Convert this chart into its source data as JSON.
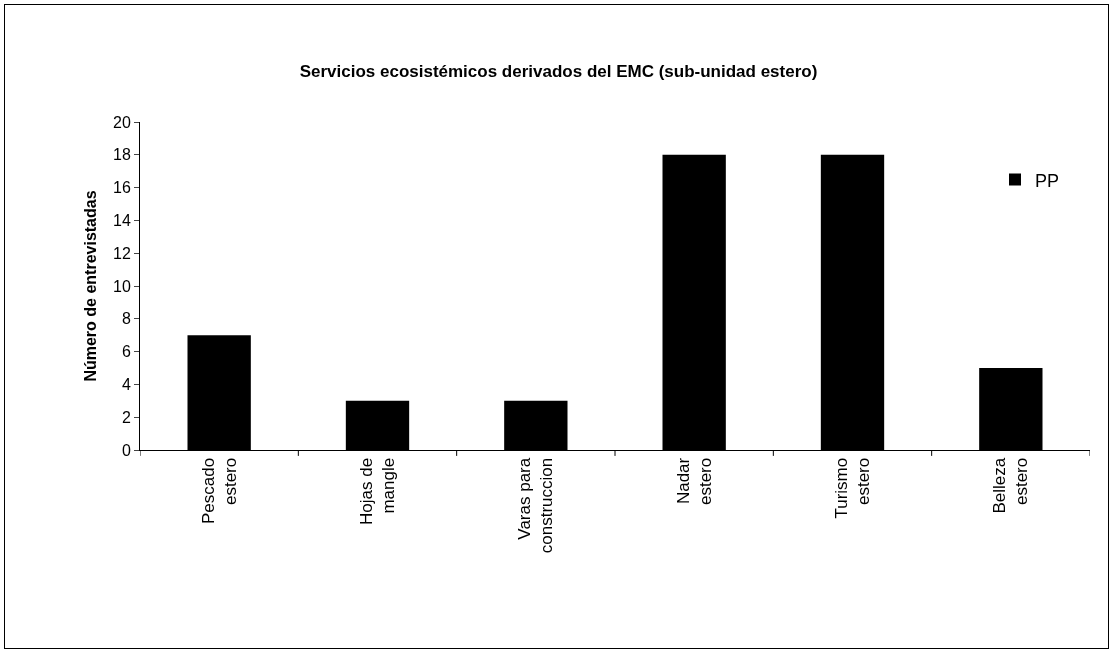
{
  "chart_data": {
    "type": "bar",
    "title": "Servicios ecosistémicos derivados del EMC (sub-unidad estero)",
    "ylabel": "Número de entrevistadas",
    "categories": [
      "Pescado estero",
      "Hojas de mangle",
      "Varas para construccion",
      "Nadar estero",
      "Turismo estero",
      "Belleza estero"
    ],
    "series": [
      {
        "name": "PP",
        "color": "#000000",
        "values": [
          7,
          3,
          3,
          18,
          18,
          5
        ]
      }
    ],
    "ylim": [
      0,
      20
    ],
    "yticks": [
      0,
      2,
      4,
      6,
      8,
      10,
      12,
      14,
      16,
      18,
      20
    ],
    "grid": false,
    "legend": "top right"
  }
}
